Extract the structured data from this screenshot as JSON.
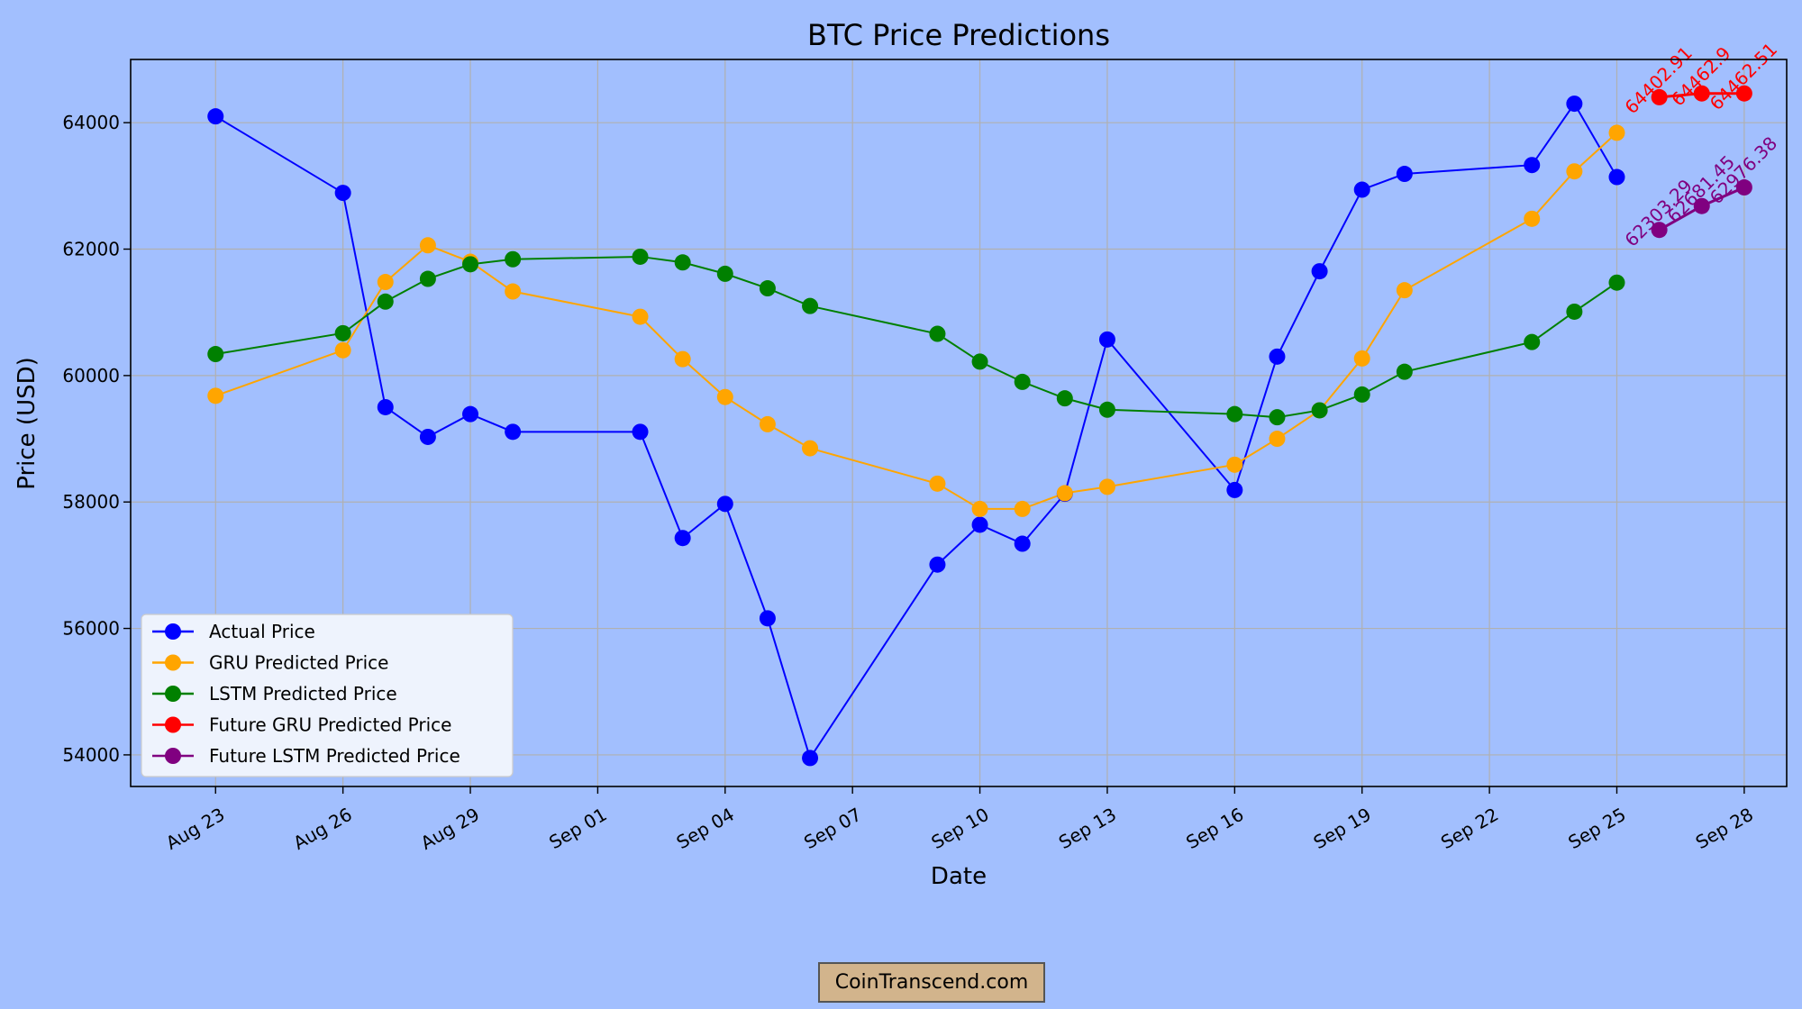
{
  "watermark": "CoinTranscend.com",
  "chart_data": {
    "type": "line",
    "title": "BTC Price Predictions",
    "xlabel": "Date",
    "ylabel": "Price (USD)",
    "grid": true,
    "legend_position": "lower-left",
    "xlim": [
      "2024-08-21",
      "2024-09-29"
    ],
    "ylim": [
      53500,
      65000
    ],
    "x_ticks": [
      "2024-08-23",
      "2024-08-26",
      "2024-08-29",
      "2024-09-01",
      "2024-09-04",
      "2024-09-07",
      "2024-09-10",
      "2024-09-13",
      "2024-09-16",
      "2024-09-19",
      "2024-09-22",
      "2024-09-25",
      "2024-09-28"
    ],
    "x_tick_labels": [
      "Aug 23",
      "Aug 26",
      "Aug 29",
      "Sep 01",
      "Sep 04",
      "Sep 07",
      "Sep 10",
      "Sep 13",
      "Sep 16",
      "Sep 19",
      "Sep 22",
      "Sep 25",
      "Sep 28"
    ],
    "y_ticks": [
      54000,
      56000,
      58000,
      60000,
      62000,
      64000
    ],
    "y_tick_labels": [
      "54000",
      "56000",
      "58000",
      "60000",
      "62000",
      "64000"
    ],
    "series": [
      {
        "name": "Actual Price",
        "color": "#0000ff",
        "x": [
          "2024-08-23",
          "2024-08-26",
          "2024-08-27",
          "2024-08-28",
          "2024-08-29",
          "2024-08-30",
          "2024-09-02",
          "2024-09-03",
          "2024-09-04",
          "2024-09-05",
          "2024-09-06",
          "2024-09-09",
          "2024-09-10",
          "2024-09-11",
          "2024-09-12",
          "2024-09-13",
          "2024-09-16",
          "2024-09-17",
          "2024-09-18",
          "2024-09-19",
          "2024-09-20",
          "2024-09-23",
          "2024-09-24",
          "2024-09-25"
        ],
        "values": [
          64100,
          62890,
          59500,
          59030,
          59390,
          59110,
          59110,
          57430,
          57970,
          56160,
          53950,
          57010,
          57640,
          57340,
          58130,
          60570,
          58190,
          60300,
          61650,
          62940,
          63190,
          63330,
          64300,
          63140
        ]
      },
      {
        "name": "GRU Predicted Price",
        "color": "#ffa500",
        "x": [
          "2024-08-23",
          "2024-08-26",
          "2024-08-27",
          "2024-08-28",
          "2024-08-29",
          "2024-08-30",
          "2024-09-02",
          "2024-09-03",
          "2024-09-04",
          "2024-09-05",
          "2024-09-06",
          "2024-09-09",
          "2024-09-10",
          "2024-09-11",
          "2024-09-12",
          "2024-09-13",
          "2024-09-16",
          "2024-09-17",
          "2024-09-18",
          "2024-09-19",
          "2024-09-20",
          "2024-09-23",
          "2024-09-24",
          "2024-09-25"
        ],
        "values": [
          59680,
          60400,
          61480,
          62060,
          61800,
          61330,
          60930,
          60260,
          59660,
          59230,
          58850,
          58290,
          57890,
          57890,
          58140,
          58240,
          58590,
          59000,
          59450,
          60270,
          61350,
          62480,
          63230,
          63840
        ]
      },
      {
        "name": "LSTM Predicted Price",
        "color": "#008000",
        "x": [
          "2024-08-23",
          "2024-08-26",
          "2024-08-27",
          "2024-08-28",
          "2024-08-29",
          "2024-08-30",
          "2024-09-02",
          "2024-09-03",
          "2024-09-04",
          "2024-09-05",
          "2024-09-06",
          "2024-09-09",
          "2024-09-10",
          "2024-09-11",
          "2024-09-12",
          "2024-09-13",
          "2024-09-16",
          "2024-09-17",
          "2024-09-18",
          "2024-09-19",
          "2024-09-20",
          "2024-09-23",
          "2024-09-24",
          "2024-09-25"
        ],
        "values": [
          60340,
          60670,
          61170,
          61530,
          61760,
          61840,
          61880,
          61790,
          61610,
          61380,
          61100,
          60660,
          60220,
          59900,
          59640,
          59460,
          59390,
          59340,
          59450,
          59700,
          60060,
          60530,
          61010,
          61470
        ]
      },
      {
        "name": "Future GRU Predicted Price",
        "color": "#ff0000",
        "x": [
          "2024-09-26",
          "2024-09-27",
          "2024-09-28"
        ],
        "values": [
          64402.91,
          64462.9,
          64462.51
        ],
        "labels": [
          "64402.91",
          "64462.9",
          "64462.51"
        ]
      },
      {
        "name": "Future LSTM Predicted Price",
        "color": "#800080",
        "x": [
          "2024-09-26",
          "2024-09-27",
          "2024-09-28"
        ],
        "values": [
          62303.29,
          62681.45,
          62976.38
        ],
        "labels": [
          "62303.29",
          "62681.45",
          "62976.38"
        ]
      }
    ]
  }
}
